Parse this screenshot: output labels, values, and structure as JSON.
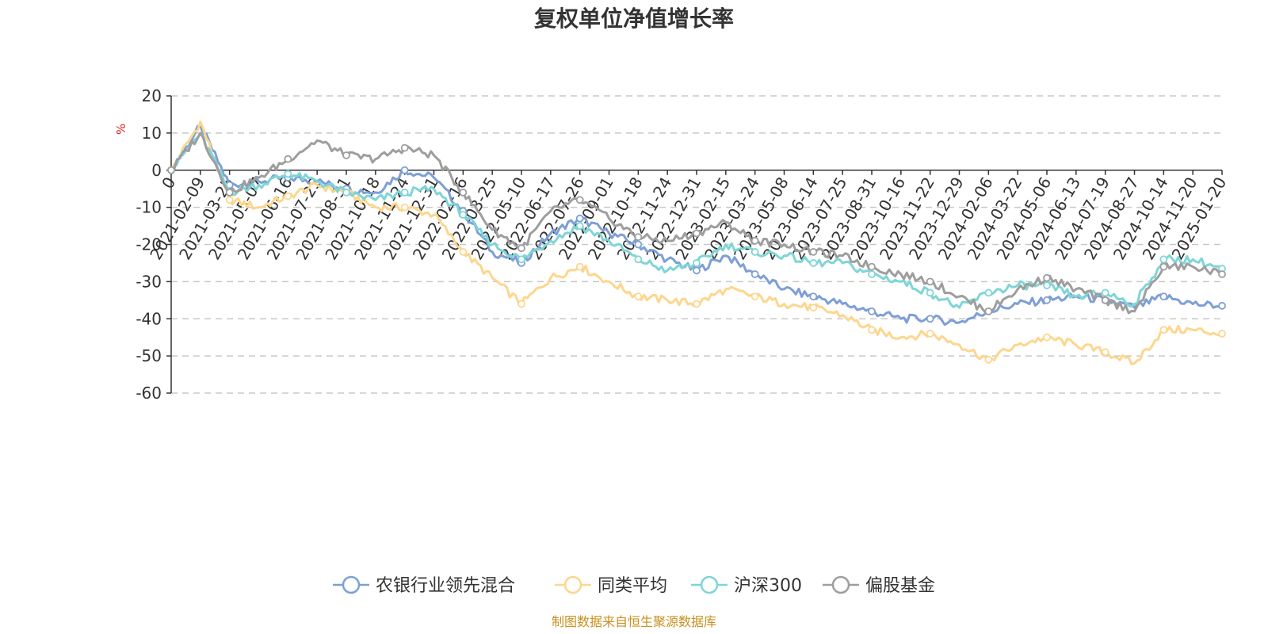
{
  "chart_data": {
    "type": "line",
    "title": "复权单位净值增长率",
    "ylabel": "%",
    "xlabel": "",
    "ylim": [
      -60,
      20
    ],
    "yticks": [
      20,
      10,
      0,
      -10,
      -20,
      -30,
      -40,
      -50,
      -60
    ],
    "grid": true,
    "legend_position": "bottom",
    "x": [
      "0",
      "2021-02-09",
      "2021-03-25",
      "2021-05-07",
      "2021-06-16",
      "2021-07-23",
      "2021-08-31",
      "2021-10-18",
      "2021-11-24",
      "2021-12-31",
      "2022-02-16",
      "2022-03-25",
      "2022-05-10",
      "2022-06-17",
      "2022-07-26",
      "2022-09-01",
      "2022-10-18",
      "2022-11-24",
      "2022-12-31",
      "2023-02-15",
      "2023-03-24",
      "2023-05-08",
      "2023-06-14",
      "2023-07-25",
      "2023-08-31",
      "2023-10-16",
      "2023-11-22",
      "2023-12-29",
      "2024-02-06",
      "2024-03-22",
      "2024-05-06",
      "2024-06-13",
      "2024-07-19",
      "2024-08-27",
      "2024-10-14",
      "2024-11-20",
      "2025-01-20"
    ],
    "series": [
      {
        "name": "农银行业领先混合",
        "color": "#7e9fd6",
        "values": [
          0,
          12,
          -4,
          -3,
          -2,
          -3,
          -5,
          -6,
          0,
          -2,
          -11,
          -22,
          -25,
          -17,
          -13,
          -17,
          -20,
          -24,
          -27,
          -23,
          -28,
          -32,
          -34,
          -36,
          -38,
          -40,
          -40,
          -41,
          -38,
          -36,
          -35,
          -34,
          -35,
          -37,
          -34,
          -36,
          -36.5
        ]
      },
      {
        "name": "同类平均",
        "color": "#fdd68e",
        "values": [
          0,
          13,
          -8,
          -10,
          -7,
          -4,
          -6,
          -10,
          -10,
          -12,
          -22,
          -29,
          -36,
          -29,
          -26,
          -30,
          -34,
          -35,
          -36,
          -32,
          -34,
          -36,
          -37,
          -39,
          -43,
          -45,
          -44,
          -47,
          -51,
          -47,
          -45,
          -47,
          -49,
          -52,
          -43,
          -43,
          -44
        ]
      },
      {
        "name": "沪深300",
        "color": "#7fd5d6",
        "values": [
          0,
          10,
          -6,
          -4,
          -1,
          -3,
          -6,
          -8,
          -6,
          -5,
          -12,
          -20,
          -24,
          -19,
          -15,
          -19,
          -24,
          -27,
          -25,
          -20,
          -22,
          -23,
          -25,
          -25,
          -28,
          -30,
          -33,
          -37,
          -33,
          -31,
          -31,
          -34,
          -33,
          -36,
          -24,
          -24,
          -26.5
        ]
      },
      {
        "name": "偏股基金",
        "color": "#9e9e9e",
        "values": [
          0,
          10,
          -6,
          -2,
          3,
          8,
          4,
          3,
          6,
          4,
          -6,
          -16,
          -21,
          -11,
          -8,
          -13,
          -18,
          -19,
          -17,
          -14,
          -19,
          -20,
          -22,
          -23,
          -26,
          -28,
          -30,
          -34,
          -38,
          -32,
          -29,
          -32,
          -35,
          -38,
          -26,
          -26,
          -28
        ]
      }
    ]
  },
  "legend": {
    "items": [
      "农银行业领先混合",
      "同类平均",
      "沪深300",
      "偏股基金"
    ]
  },
  "footer": {
    "source": "制图数据来自恒生聚源数据库"
  }
}
